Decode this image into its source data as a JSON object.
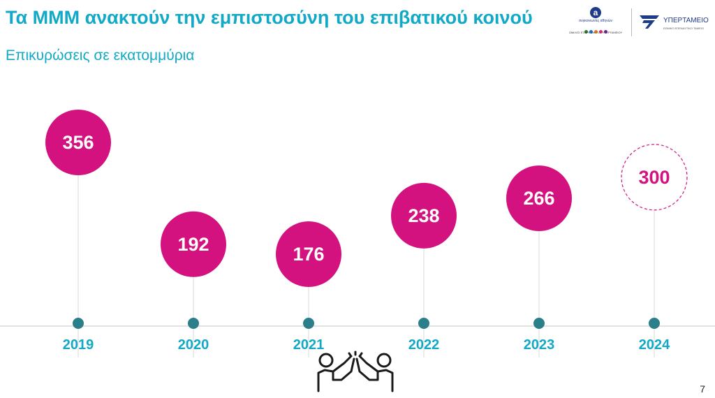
{
  "header": {
    "title": "Τα ΜΜΜ ανακτούν την εμπιστοσύνη του επιβατικού κοινού",
    "subtitle": "Επικυρώσεις σε εκατομμύρια"
  },
  "logos": {
    "oasa_letter": "a",
    "oasa_name": "συγκοινωνίες αθηνών",
    "oasa_subtitle": "ΟΜΙΛΟΣ ΕΤΑΙΡΕΙΩΝ ΤΟΥ ΥΠΕΡΤΑΜΕΙΟΥ",
    "ministry_name": "ΥΠΕΡΤΑΜΕΙΟ",
    "ministry_subtitle": "ΕΘΝΙΚΟ ΕΠΕΝΔΥΤΙΚΟ ΤΑΜΕΙΟ",
    "oasa_dot_colors": [
      "#2f7d32",
      "#1976d2",
      "#e67e22",
      "#d6336c",
      "#7b1fa2"
    ]
  },
  "colors": {
    "accent": "#12a9c6",
    "bubble": "#d4127f",
    "marker": "#2a7f8a",
    "axis": "#d9d9d9"
  },
  "chart_data": {
    "type": "timeline",
    "categories": [
      "2019",
      "2020",
      "2021",
      "2022",
      "2023",
      "2024"
    ],
    "values": [
      356,
      192,
      176,
      238,
      266,
      300
    ],
    "value_labels": [
      "356",
      "192",
      "176",
      "238",
      "266",
      "300"
    ],
    "projected": [
      false,
      false,
      false,
      false,
      false,
      true
    ],
    "series": [
      {
        "name": "",
        "values": [
          356,
          192,
          176,
          238,
          266,
          300
        ]
      }
    ],
    "title": "Τα ΜΜΜ ανακτούν την εμπιστοσύνη του επιβατικού κοινού",
    "subtitle": "Επικυρώσεις σε εκατομμύρια",
    "xlabel": "",
    "ylabel": ""
  },
  "footer": {
    "icon": "high-five-icon",
    "page_number": "7"
  }
}
